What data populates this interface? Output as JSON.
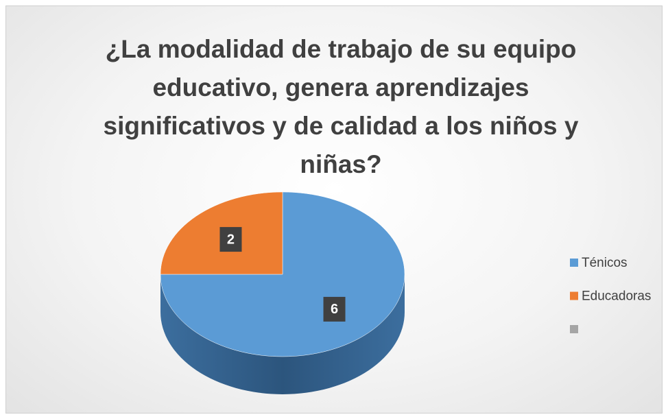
{
  "chart_data": {
    "type": "pie",
    "title": "¿La modalidad de trabajo de su equipo educativo, genera aprendizajes significativos y de calidad a los niños y niñas?",
    "categories": [
      "Ténicos",
      "Educadoras",
      null
    ],
    "values": [
      6,
      2,
      0
    ],
    "colors": [
      "#5b9bd5",
      "#ed7d31",
      "#a5a5a5"
    ],
    "legend": "right"
  }
}
